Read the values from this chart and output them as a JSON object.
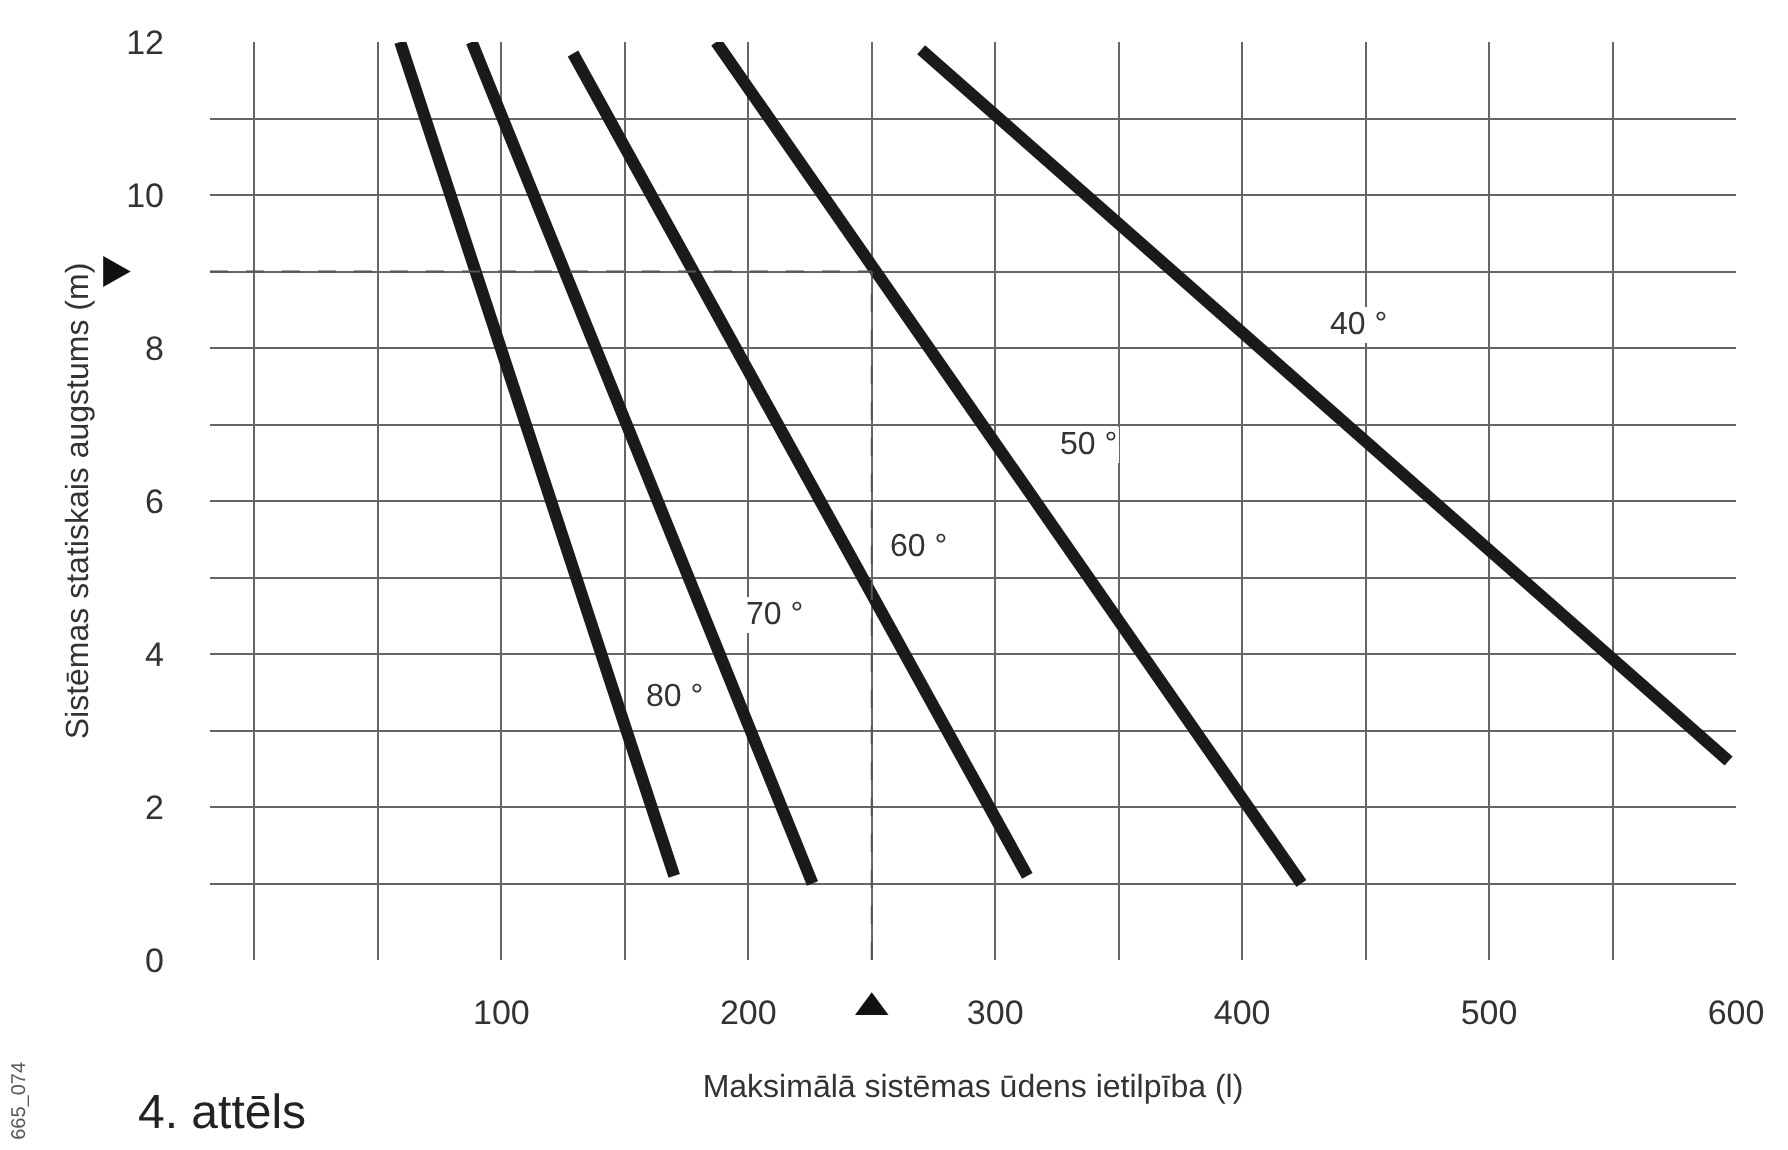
{
  "chart_data": {
    "type": "line",
    "xlabel": "Maksimālā sistēmas ūdens ietilpība (l)",
    "ylabel": "Sistēmas statiskais augstums (m)",
    "xlim": [
      -18,
      600
    ],
    "ylim": [
      0,
      12
    ],
    "xticks": [
      {
        "value": 0,
        "label": null
      },
      {
        "value": 50,
        "label": null
      },
      100,
      {
        "value": 150,
        "label": null
      },
      200,
      {
        "value": 250,
        "label": null
      },
      300,
      {
        "value": 350,
        "label": null
      },
      400,
      {
        "value": 450,
        "label": null
      },
      500,
      {
        "value": 550,
        "label": null
      },
      600
    ],
    "yticks": [
      0,
      {
        "value": 1,
        "label": null
      },
      2,
      {
        "value": 3,
        "label": null
      },
      4,
      {
        "value": 5,
        "label": null
      },
      6,
      {
        "value": 7,
        "label": null
      },
      8,
      {
        "value": 9,
        "label": null
      },
      10,
      {
        "value": 11,
        "label": null
      },
      12
    ],
    "grid": true,
    "marker": "none",
    "line_style": "solid",
    "series": [
      {
        "color": "#1a1a1a",
        "x": [
          59,
          170
        ],
        "values": [
          12,
          1.1
        ]
      },
      {
        "color": "#1a1a1a",
        "x": [
          88,
          226
        ],
        "values": [
          12,
          1.0
        ]
      },
      {
        "color": "#1a1a1a",
        "x": [
          129,
          313
        ],
        "values": [
          11.85,
          1.1
        ]
      },
      {
        "color": "#1a1a1a",
        "x": [
          187,
          424
        ],
        "values": [
          12,
          1.0
        ]
      },
      {
        "color": "#1a1a1a",
        "x": [
          270,
          597
        ],
        "values": [
          11.9,
          2.6
        ]
      }
    ],
    "ref_lines": [
      {
        "axis": "y",
        "value": 9,
        "line_style": "dashed",
        "color": "#555555"
      },
      {
        "axis": "x",
        "value": 250,
        "line_style": "dashed",
        "color": "#555555"
      }
    ],
    "annotations": [
      {
        "text": "40 °",
        "x": 447,
        "y": 8.3
      },
      {
        "text": "50 °",
        "x": 338,
        "y": 6.74
      },
      {
        "text": "60 °",
        "x": 269,
        "y": 5.4
      },
      {
        "text": "70 °",
        "x": 211,
        "y": 4.52
      },
      {
        "text": "80 °",
        "x": 170,
        "y": 3.45
      },
      "4. attēls",
      "665_074"
    ]
  }
}
